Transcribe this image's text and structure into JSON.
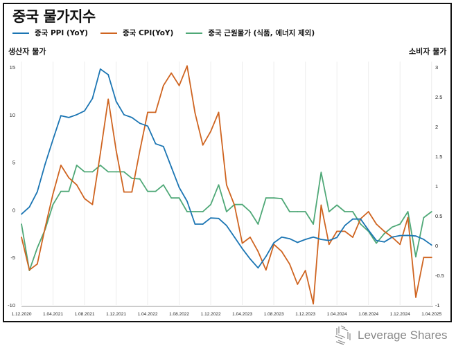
{
  "chart_data": {
    "type": "line",
    "title": "중국 물가지수",
    "ylabel_left": "생산자 물가",
    "ylabel_right": "소비자 물가",
    "ylim_left": [
      -10,
      15
    ],
    "ylim_right": [
      -1,
      3
    ],
    "yticks_left": [
      "15",
      "10",
      "5",
      "0",
      "-5",
      "-10"
    ],
    "yticks_left_values": [
      15,
      10,
      5,
      0,
      -5,
      -10
    ],
    "yticks_right": [
      "3",
      "2.5",
      "2",
      "1.5",
      "1",
      "0.5",
      "0",
      "-0.5",
      "-1"
    ],
    "yticks_right_values": [
      3,
      2.5,
      2,
      1.5,
      1,
      0.5,
      0,
      -0.5,
      -1
    ],
    "xticks": [
      "1.12.2020",
      "1.04.2021",
      "1.08.2021",
      "1.12.2021",
      "1.04.2022",
      "1.08.2022",
      "1.12.2022",
      "1.04.2023",
      "1.08.2023",
      "1.12.2023",
      "1.04.2024",
      "1.08.2024",
      "1.12.2024",
      "1.04.2025"
    ],
    "x_start": "2020-12",
    "x_end": "2025-04",
    "x_step": "monthly",
    "grid": "vertical",
    "legend_position": "top-left",
    "series": [
      {
        "name": "중국 PPI (YoY)",
        "axis": "left",
        "color": "#1b75b3",
        "values": [
          -0.45,
          0.3,
          1.9,
          4.8,
          7.4,
          9.9,
          9.7,
          10.0,
          10.4,
          11.7,
          14.8,
          14.2,
          11.4,
          10.0,
          9.7,
          9.1,
          8.8,
          6.95,
          6.66,
          4.5,
          2.35,
          0.9,
          -1.5,
          -1.5,
          -0.85,
          -0.9,
          -1.65,
          -2.86,
          -4.07,
          -5.16,
          -6.1,
          -4.9,
          -3.46,
          -2.86,
          -3.03,
          -3.42,
          -3.1,
          -2.86,
          -3.1,
          -3.22,
          -2.9,
          -1.65,
          -0.97,
          -0.97,
          -2.13,
          -3.22,
          -3.37,
          -2.86,
          -2.7,
          -2.68,
          -2.75,
          -3.1,
          -3.7
        ]
      },
      {
        "name": "중국 CPI(YoY)",
        "axis": "right",
        "color": "#cf6420",
        "values": [
          0.14,
          -0.41,
          -0.31,
          0.3,
          0.87,
          1.35,
          1.14,
          1.02,
          0.79,
          0.69,
          1.55,
          2.46,
          1.6,
          0.9,
          0.9,
          1.59,
          2.24,
          2.24,
          2.69,
          2.9,
          2.69,
          3.02,
          2.23,
          1.69,
          1.92,
          2.24,
          1.02,
          0.68,
          0.04,
          0.14,
          -0.1,
          -0.41,
          0.02,
          -0.1,
          -0.31,
          -0.65,
          -0.42,
          -0.98,
          0.68,
          0.02,
          0.24,
          0.24,
          0.14,
          0.45,
          0.57,
          0.36,
          0.24,
          0.14,
          0.02,
          0.47,
          -0.87,
          -0.2,
          -0.2
        ]
      },
      {
        "name": "중국 근원물가 (식품, 에너지 제외)",
        "axis": "right",
        "color": "#4fa877",
        "values": [
          0.36,
          -0.42,
          -0.04,
          0.27,
          0.69,
          0.91,
          0.91,
          1.35,
          1.24,
          1.24,
          1.35,
          1.24,
          1.24,
          1.24,
          1.13,
          1.12,
          0.91,
          0.91,
          1.02,
          0.8,
          0.8,
          0.57,
          0.57,
          0.57,
          0.69,
          1.02,
          0.57,
          0.69,
          0.69,
          0.57,
          0.36,
          0.8,
          0.8,
          0.79,
          0.57,
          0.57,
          0.57,
          0.36,
          1.23,
          0.57,
          0.68,
          0.57,
          0.57,
          0.36,
          0.24,
          0.04,
          0.2,
          0.31,
          0.36,
          0.57,
          -0.19,
          0.47,
          0.57
        ]
      }
    ]
  },
  "branding": {
    "logo_text": "Leverage Shares"
  }
}
